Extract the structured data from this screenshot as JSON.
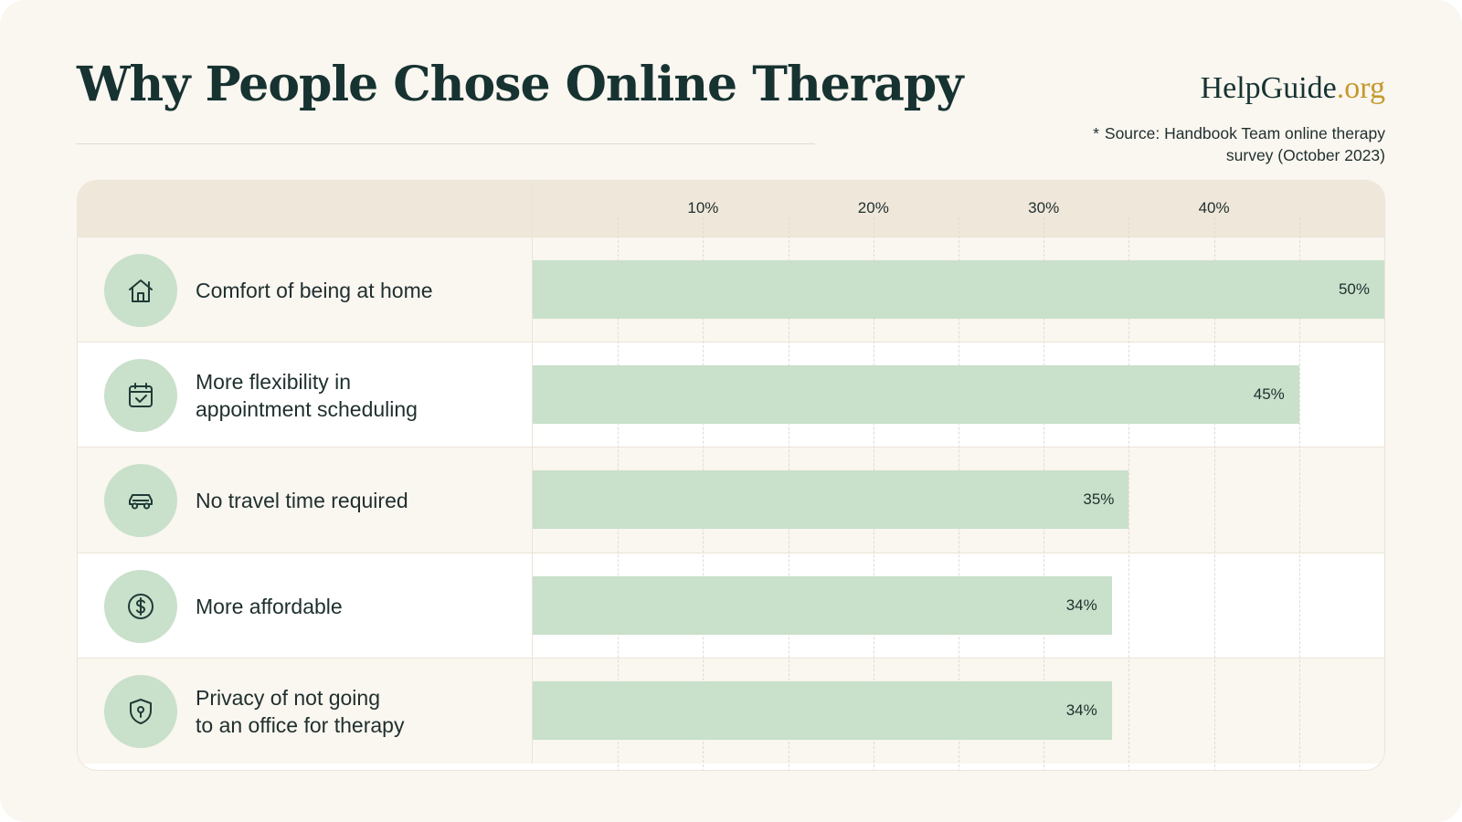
{
  "header": {
    "title": "Why People Chose Online Therapy",
    "brand_name": "HelpGuide",
    "brand_tld": ".org",
    "source_marker": "*",
    "source_text": "Source: Handbook Team online therapy survey (October 2023)"
  },
  "colors": {
    "bar": "#c9e0cb",
    "icon_bg": "#c9e0cb",
    "header_bg": "#efe7da",
    "title": "#173331",
    "brand_accent": "#c49a2c"
  },
  "chart_data": {
    "type": "bar",
    "orientation": "horizontal",
    "categories": [
      "Comfort of being at home",
      "More flexibility in\nappointment scheduling",
      "No travel time required",
      "More affordable",
      "Privacy of not going\nto an office for therapy"
    ],
    "values": [
      50,
      45,
      35,
      34,
      34
    ],
    "data_labels": [
      "50%",
      "45%",
      "35%",
      "34%",
      "34%"
    ],
    "icons": [
      "home-icon",
      "calendar-check-icon",
      "car-icon",
      "dollar-coin-icon",
      "shield-keyhole-icon"
    ],
    "x_ticks": [
      10,
      20,
      30,
      40
    ],
    "x_tick_labels": [
      "10%",
      "20%",
      "30%",
      "40%"
    ],
    "xlim": [
      0,
      50
    ],
    "grid": true,
    "grid_minor": 5
  }
}
